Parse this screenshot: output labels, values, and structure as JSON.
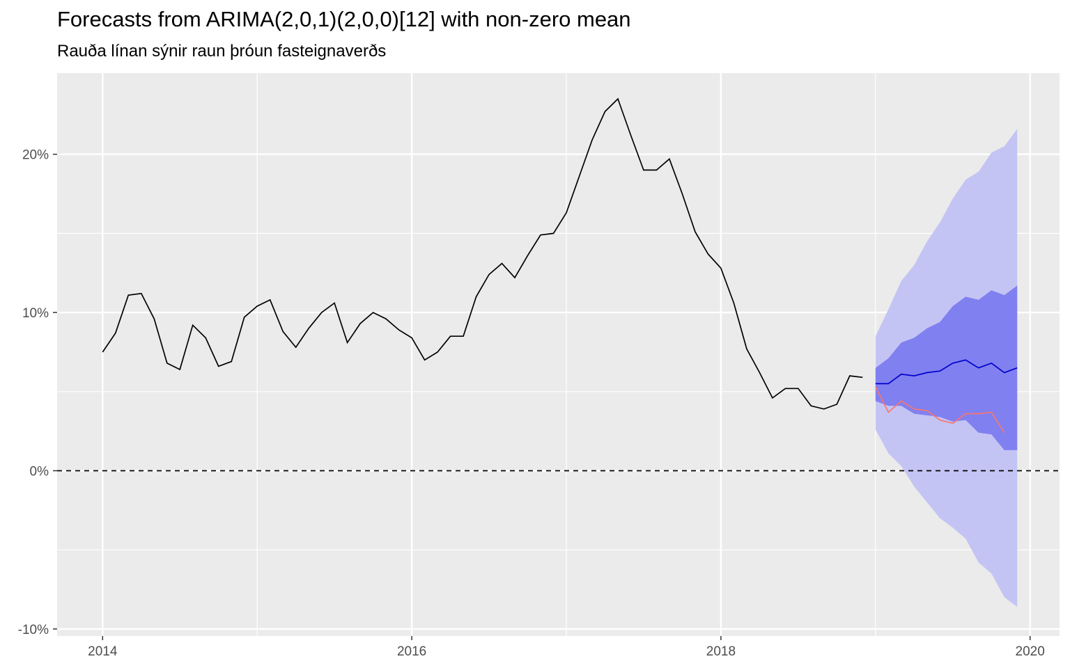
{
  "chart_data": {
    "type": "line",
    "title": "Forecasts from ARIMA(2,0,1)(2,0,0)[12] with non-zero mean",
    "subtitle": "Rauða línan sýnir raun þróun fasteignaverðs",
    "xlabel": "",
    "ylabel": "",
    "xlim": [
      2013.71,
      2020.2
    ],
    "ylim": [
      -10,
      25
    ],
    "x_ticks": [
      2014,
      2016,
      2018,
      2020
    ],
    "x_tick_labels": [
      "2014",
      "2016",
      "2018",
      "2020"
    ],
    "y_ticks": [
      -10,
      0,
      10,
      20
    ],
    "y_tick_labels": [
      "-10%",
      "0%",
      "10%",
      "20%"
    ],
    "grid": true,
    "reference_line": {
      "y": 0,
      "style": "dashed",
      "color": "#000000"
    },
    "colors": {
      "panel_background": "#ebebeb",
      "grid": "#ffffff",
      "history": "#000000",
      "forecast": "#0000cc",
      "actual": "#f8766d",
      "band_80": "#8080f0",
      "band_95": "#c4c4f4"
    },
    "history": {
      "start": 2014.0,
      "step": 0.083333,
      "values": [
        7.5,
        8.7,
        11.1,
        11.2,
        9.6,
        6.8,
        6.4,
        9.2,
        8.4,
        6.6,
        6.9,
        9.7,
        10.4,
        10.8,
        8.8,
        7.8,
        9.0,
        10.0,
        10.6,
        8.1,
        9.3,
        10.0,
        9.6,
        8.9,
        8.4,
        7.0,
        7.5,
        8.5,
        8.5,
        11.0,
        12.4,
        13.1,
        12.2,
        13.6,
        14.9,
        15.0,
        16.3,
        18.6,
        20.9,
        22.7,
        23.5,
        21.2,
        19.0,
        19.0,
        19.7,
        17.5,
        15.1,
        13.7,
        12.8,
        10.6,
        7.7,
        6.2,
        4.6,
        5.2,
        5.2,
        4.1,
        3.9,
        4.2,
        6.0,
        5.9
      ]
    },
    "forecast": {
      "start": 2019.0,
      "step": 0.083333,
      "mean": [
        5.5,
        5.5,
        6.1,
        6.0,
        6.2,
        6.3,
        6.8,
        7.0,
        6.5,
        6.8,
        6.2,
        6.5
      ],
      "lo80": [
        4.4,
        4.1,
        4.1,
        3.6,
        3.5,
        3.4,
        3.1,
        3.2,
        2.4,
        2.3,
        1.3,
        1.3
      ],
      "hi80": [
        6.5,
        7.1,
        8.1,
        8.4,
        9.0,
        9.4,
        10.4,
        11.0,
        10.8,
        11.4,
        11.1,
        11.7
      ],
      "lo95": [
        2.6,
        1.1,
        0.3,
        -1.0,
        -2.0,
        -3.0,
        -3.6,
        -4.3,
        -5.8,
        -6.5,
        -8.0,
        -8.6
      ],
      "hi95": [
        8.5,
        10.2,
        12.0,
        13.0,
        14.5,
        15.7,
        17.2,
        18.4,
        18.9,
        20.1,
        20.5,
        21.6
      ]
    },
    "actual": {
      "start": 2019.0,
      "step": 0.083333,
      "values": [
        5.3,
        3.7,
        4.4,
        3.9,
        3.8,
        3.2,
        3.0,
        3.6,
        3.6,
        3.7,
        2.4
      ]
    }
  }
}
